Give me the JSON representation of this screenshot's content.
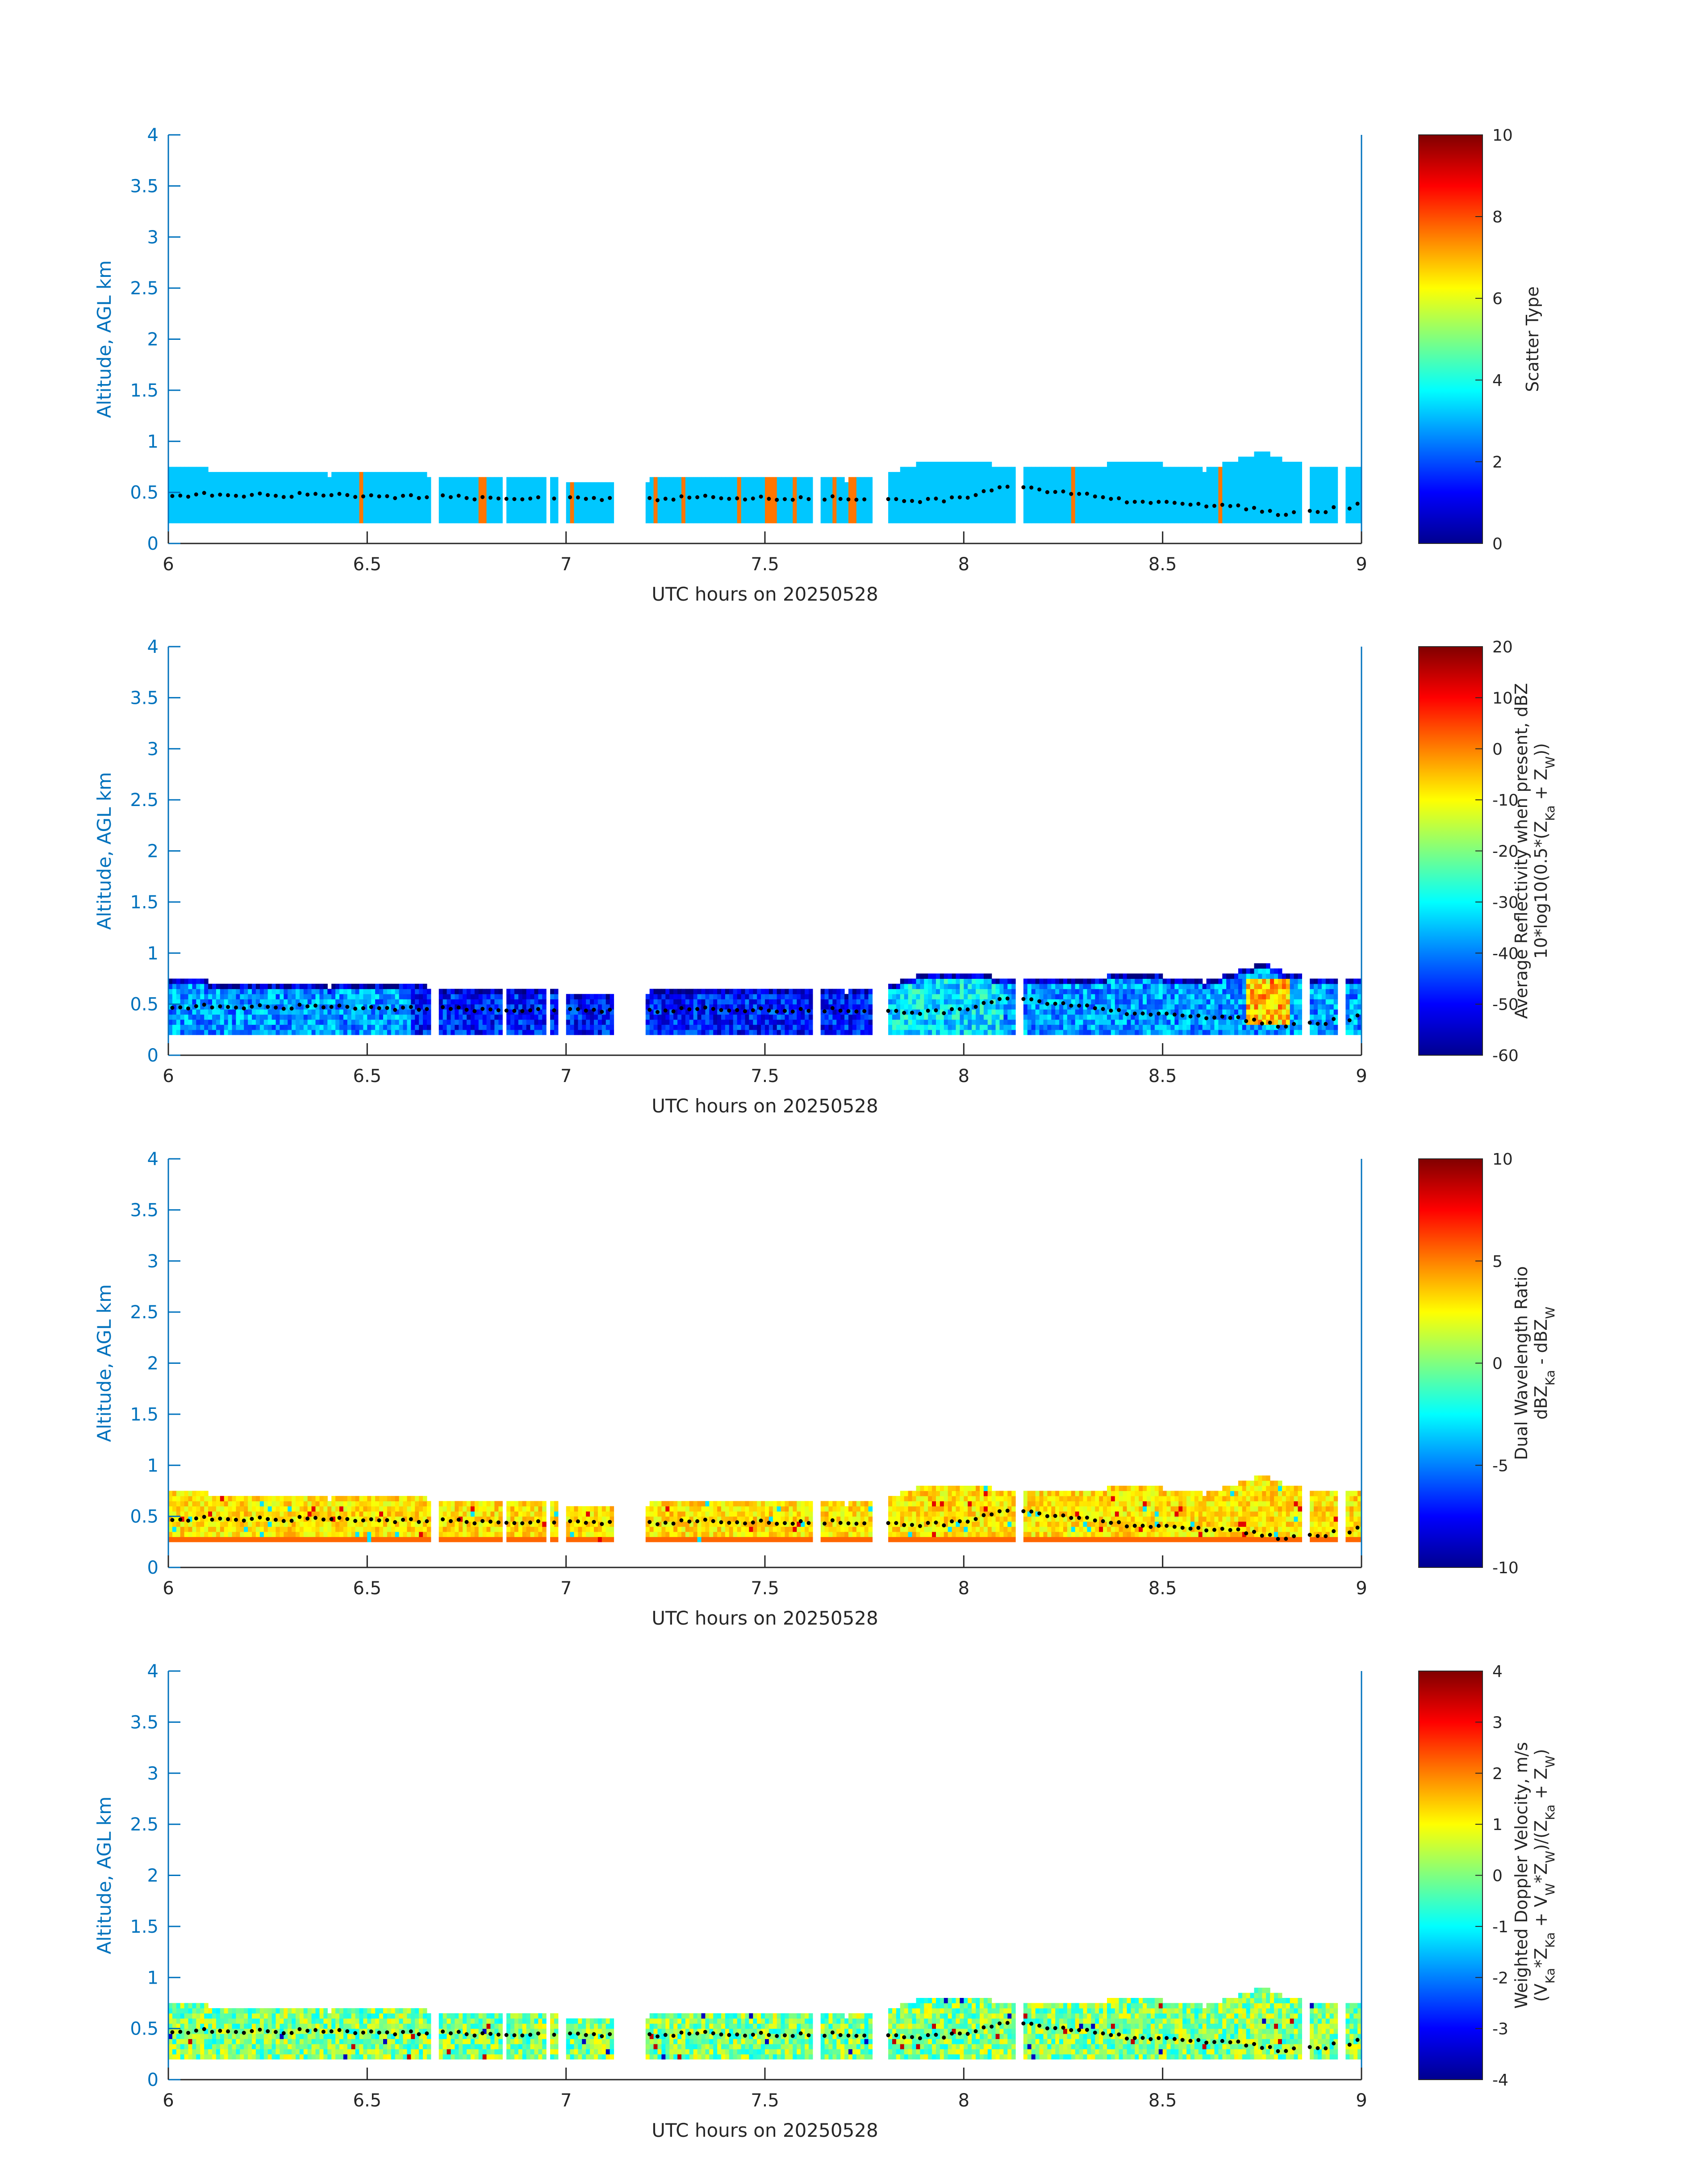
{
  "figure": {
    "date_label": "UTC hours on 20250528"
  },
  "colors": {
    "axis": "#0072bd",
    "text": "#262626",
    "marker": "#000000",
    "colormap": "jet"
  },
  "chart_data": [
    {
      "type": "heatmap",
      "xlabel": "UTC hours on 20250528",
      "ylabel": "Altitude, AGL km",
      "xlim": [
        6,
        9
      ],
      "ylim": [
        0,
        4
      ],
      "xticks": [
        "6",
        "6.5",
        "7",
        "7.5",
        "8",
        "8.5",
        "9"
      ],
      "yticks": [
        "0",
        "0.5",
        "1",
        "1.5",
        "2",
        "2.5",
        "3",
        "3.5",
        "4"
      ],
      "colorbar": {
        "label_lines": [
          "Scatter Type"
        ],
        "range": [
          0,
          10
        ],
        "ticks": [
          "0",
          "2",
          "4",
          "6",
          "8",
          "10"
        ]
      },
      "field": "scatter_type",
      "base_value": 3.2,
      "orange_columns_hours": [
        6.48,
        6.66,
        6.78,
        6.79,
        6.95,
        7.01,
        7.16,
        7.22,
        7.29,
        7.43,
        7.5,
        7.51,
        7.52,
        7.57,
        7.63,
        7.67,
        7.71,
        7.72,
        8.14,
        8.27,
        8.64,
        8.86
      ]
    },
    {
      "type": "heatmap",
      "xlabel": "UTC hours on 20250528",
      "ylabel": "Altitude, AGL km",
      "xlim": [
        6,
        9
      ],
      "ylim": [
        0,
        4
      ],
      "xticks": [
        "6",
        "6.5",
        "7",
        "7.5",
        "8",
        "8.5",
        "9"
      ],
      "yticks": [
        "0",
        "0.5",
        "1",
        "1.5",
        "2",
        "2.5",
        "3",
        "3.5",
        "4"
      ],
      "colorbar": {
        "label_lines": [
          "Average Reflectivity when present, dBZ",
          "10*log10(0.5*(Z{Ka} + Z{W}))"
        ],
        "range": [
          -60,
          20
        ],
        "ticks": [
          "-60",
          "-50",
          "-40",
          "-30",
          "-20",
          "-10",
          "0",
          "10",
          "20"
        ]
      },
      "field": "reflectivity_dbz",
      "hotspot": {
        "x_hours": [
          8.71,
          8.81
        ],
        "value_dbz": -5
      }
    },
    {
      "type": "heatmap",
      "xlabel": "UTC hours on 20250528",
      "ylabel": "Altitude, AGL km",
      "xlim": [
        6,
        9
      ],
      "ylim": [
        0,
        4
      ],
      "xticks": [
        "6",
        "6.5",
        "7",
        "7.5",
        "8",
        "8.5",
        "9"
      ],
      "yticks": [
        "0",
        "0.5",
        "1",
        "1.5",
        "2",
        "2.5",
        "3",
        "3.5",
        "4"
      ],
      "colorbar": {
        "label_lines": [
          "Dual Wavelength Ratio",
          "dBZ{Ka} - dBZ{W}"
        ],
        "range": [
          -10,
          10
        ],
        "ticks": [
          "-10",
          "-5",
          "0",
          "5",
          "10"
        ]
      },
      "field": "dwr_db",
      "base_value": 3,
      "lowest_bin_value": 5.5
    },
    {
      "type": "heatmap",
      "xlabel": "UTC hours on 20250528",
      "ylabel": "Altitude, AGL km",
      "xlim": [
        6,
        9
      ],
      "ylim": [
        0,
        4
      ],
      "xticks": [
        "6",
        "6.5",
        "7",
        "7.5",
        "8",
        "8.5",
        "9"
      ],
      "yticks": [
        "0",
        "0.5",
        "1",
        "1.5",
        "2",
        "2.5",
        "3",
        "3.5",
        "4"
      ],
      "colorbar": {
        "label_lines": [
          "Weighted Doppler Velocity, m/s",
          "(V{Ka}*Z{Ka} + V{W}*Z{W})/(Z{Ka} + Z{W})"
        ],
        "range": [
          -4,
          4
        ],
        "ticks": [
          "-4",
          "-3",
          "-2",
          "-1",
          "0",
          "1",
          "2",
          "3",
          "4"
        ]
      },
      "field": "doppler_velocity_ms",
      "base_value": -0.3
    }
  ],
  "shared_profile": {
    "gaps_hours": [
      [
        6.66,
        6.675
      ],
      [
        6.835,
        6.845
      ],
      [
        6.945,
        6.955
      ],
      [
        6.98,
        6.995
      ],
      [
        7.115,
        7.2
      ],
      [
        7.62,
        7.635
      ],
      [
        7.765,
        7.805
      ],
      [
        8.125,
        8.145
      ],
      [
        8.85,
        8.865
      ],
      [
        8.94,
        8.955
      ]
    ],
    "cloud_base_km": 0.2,
    "cloud_top_km": [
      [
        6.0,
        0.72
      ],
      [
        6.1,
        0.7
      ],
      [
        6.2,
        0.7
      ],
      [
        6.3,
        0.68
      ],
      [
        6.4,
        0.65
      ],
      [
        6.5,
        0.66
      ],
      [
        6.6,
        0.68
      ],
      [
        6.7,
        0.62
      ],
      [
        6.8,
        0.62
      ],
      [
        6.9,
        0.63
      ],
      [
        7.0,
        0.6
      ],
      [
        7.1,
        0.6
      ],
      [
        7.2,
        0.6
      ],
      [
        7.3,
        0.65
      ],
      [
        7.4,
        0.62
      ],
      [
        7.5,
        0.65
      ],
      [
        7.6,
        0.63
      ],
      [
        7.7,
        0.6
      ],
      [
        7.8,
        0.66
      ],
      [
        7.9,
        0.78
      ],
      [
        8.0,
        0.8
      ],
      [
        8.1,
        0.72
      ],
      [
        8.2,
        0.72
      ],
      [
        8.3,
        0.74
      ],
      [
        8.4,
        0.76
      ],
      [
        8.5,
        0.75
      ],
      [
        8.6,
        0.7
      ],
      [
        8.7,
        0.82
      ],
      [
        8.75,
        0.88
      ],
      [
        8.8,
        0.8
      ],
      [
        8.9,
        0.72
      ],
      [
        9.0,
        0.75
      ]
    ],
    "marker_altitude_km": [
      [
        6.0,
        0.48
      ],
      [
        6.2,
        0.47
      ],
      [
        6.4,
        0.48
      ],
      [
        6.6,
        0.46
      ],
      [
        6.8,
        0.45
      ],
      [
        7.0,
        0.44
      ],
      [
        7.2,
        0.44
      ],
      [
        7.4,
        0.45
      ],
      [
        7.6,
        0.44
      ],
      [
        7.8,
        0.45
      ],
      [
        7.9,
        0.42
      ],
      [
        8.0,
        0.44
      ],
      [
        8.1,
        0.55
      ],
      [
        8.2,
        0.52
      ],
      [
        8.3,
        0.48
      ],
      [
        8.4,
        0.42
      ],
      [
        8.5,
        0.4
      ],
      [
        8.6,
        0.38
      ],
      [
        8.7,
        0.35
      ],
      [
        8.8,
        0.28
      ],
      [
        8.9,
        0.32
      ],
      [
        9.0,
        0.38
      ]
    ]
  }
}
